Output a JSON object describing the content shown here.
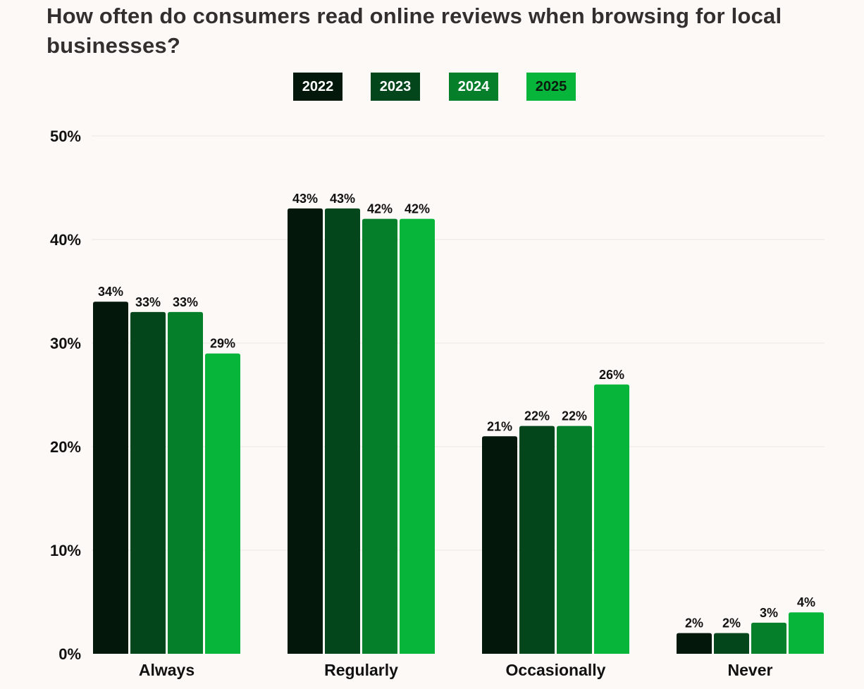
{
  "chart_data": {
    "type": "bar",
    "title": "How often do consumers read online reviews when browsing for local businesses?",
    "xlabel": "",
    "ylabel": "",
    "categories": [
      "Always",
      "Regularly",
      "Occasionally",
      "Never"
    ],
    "series": [
      {
        "name": "2022",
        "color": "#03170b",
        "values": [
          34,
          43,
          21,
          2
        ],
        "labels": [
          "34%",
          "43%",
          "21%",
          "2%"
        ]
      },
      {
        "name": "2023",
        "color": "#03461b",
        "values": [
          33,
          43,
          22,
          2
        ],
        "labels": [
          "33%",
          "43%",
          "22%",
          "2%"
        ]
      },
      {
        "name": "2024",
        "color": "#067f2b",
        "values": [
          33,
          42,
          22,
          3
        ],
        "labels": [
          "33%",
          "42%",
          "22%",
          "3%"
        ]
      },
      {
        "name": "2025",
        "color": "#06b53a",
        "values": [
          29,
          42,
          26,
          4
        ],
        "labels": [
          "29%",
          "42%",
          "26%",
          "4%"
        ]
      }
    ],
    "ylim": [
      0,
      50
    ],
    "yticks": [
      0,
      10,
      20,
      30,
      40,
      50
    ],
    "ytick_labels": [
      "0%",
      "10%",
      "20%",
      "30%",
      "40%",
      "50%"
    ],
    "grid": true,
    "legend_position": "top-center"
  }
}
